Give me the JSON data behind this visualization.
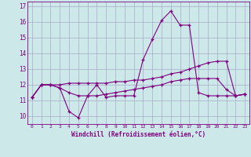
{
  "xlabel": "Windchill (Refroidissement éolien,°C)",
  "x": [
    0,
    1,
    2,
    3,
    4,
    5,
    6,
    7,
    8,
    9,
    10,
    11,
    12,
    13,
    14,
    15,
    16,
    17,
    18,
    19,
    20,
    21,
    22,
    23
  ],
  "line1": [
    11.2,
    12.0,
    12.0,
    11.8,
    10.3,
    9.9,
    11.3,
    12.0,
    11.2,
    11.3,
    11.3,
    11.3,
    13.6,
    14.9,
    16.1,
    16.7,
    15.8,
    15.8,
    11.5,
    11.3,
    11.3,
    11.3,
    11.3,
    11.4
  ],
  "line2": [
    11.2,
    12.0,
    12.0,
    11.8,
    11.5,
    11.3,
    11.3,
    11.3,
    11.4,
    11.5,
    11.6,
    11.7,
    11.8,
    11.9,
    12.0,
    12.2,
    12.3,
    12.4,
    12.4,
    12.4,
    12.4,
    11.7,
    11.3,
    11.4
  ],
  "line3": [
    11.2,
    12.0,
    12.0,
    12.0,
    12.1,
    12.1,
    12.1,
    12.1,
    12.1,
    12.2,
    12.2,
    12.3,
    12.3,
    12.4,
    12.5,
    12.7,
    12.8,
    13.0,
    13.2,
    13.4,
    13.5,
    13.5,
    11.3,
    11.4
  ],
  "bg_color": "#cce8e8",
  "line_color": "#800080",
  "grid_color": "#aaaacc",
  "ylim": [
    9.5,
    17.3
  ],
  "xlim": [
    -0.5,
    23.5
  ],
  "yticks": [
    10,
    11,
    12,
    13,
    14,
    15,
    16,
    17
  ],
  "xticks": [
    0,
    1,
    2,
    3,
    4,
    5,
    6,
    7,
    8,
    9,
    10,
    11,
    12,
    13,
    14,
    15,
    16,
    17,
    18,
    19,
    20,
    21,
    22,
    23
  ]
}
